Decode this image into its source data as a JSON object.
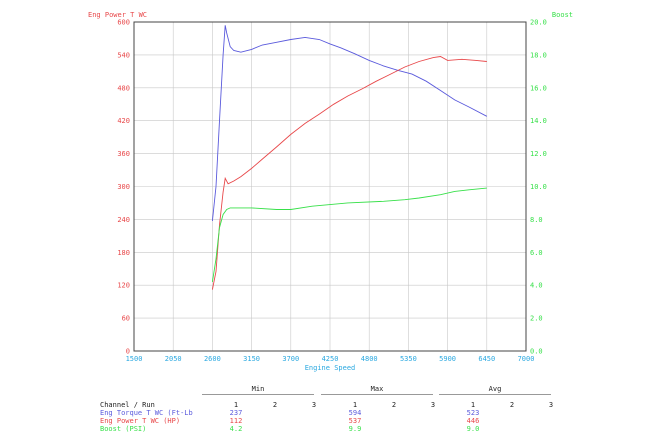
{
  "colors": {
    "torque": "#5a5adc",
    "power": "#e8484a",
    "boost": "#38e04a",
    "speed_axis": "#2aa8e0",
    "grid": "#c8c8c8",
    "table_text": "#222222"
  },
  "chart_data": {
    "type": "line",
    "title": "",
    "xlabel": "Engine Speed",
    "ylabel_left": "Eng Power T WC",
    "ylabel_right": "Boost",
    "xlim": [
      1500,
      7000
    ],
    "x_ticks": [
      1500,
      2050,
      2600,
      3150,
      3700,
      4250,
      4800,
      5350,
      5900,
      6450,
      7000
    ],
    "ylim_left": [
      0,
      600
    ],
    "y_ticks_left": [
      0,
      60,
      120,
      180,
      240,
      300,
      360,
      420,
      480,
      540,
      600
    ],
    "ylim_right": [
      0,
      20
    ],
    "y_ticks_right": [
      "0.0",
      "2.0",
      "4.0",
      "6.0",
      "8.0",
      "10.0",
      "12.0",
      "14.0",
      "16.0",
      "18.0",
      "20.0"
    ],
    "grid": true,
    "series": [
      {
        "name": "Eng Torque T WC (Ft-Lb)",
        "axis": "left",
        "x": [
          2600,
          2650,
          2700,
          2750,
          2780,
          2800,
          2850,
          2900,
          3000,
          3150,
          3300,
          3500,
          3700,
          3900,
          4100,
          4250,
          4400,
          4600,
          4800,
          5000,
          5200,
          5400,
          5600,
          5800,
          6000,
          6200,
          6450
        ],
        "y": [
          237,
          300,
          420,
          540,
          594,
          580,
          555,
          548,
          545,
          550,
          558,
          563,
          568,
          572,
          568,
          560,
          553,
          542,
          530,
          520,
          512,
          505,
          492,
          475,
          458,
          445,
          428
        ]
      },
      {
        "name": "Eng Power T WC (HP)",
        "axis": "left",
        "x": [
          2600,
          2650,
          2700,
          2750,
          2780,
          2820,
          2900,
          3000,
          3150,
          3300,
          3500,
          3700,
          3900,
          4100,
          4300,
          4500,
          4700,
          4900,
          5100,
          5300,
          5500,
          5700,
          5800,
          5900,
          6100,
          6300,
          6450
        ],
        "y": [
          112,
          145,
          230,
          290,
          315,
          305,
          310,
          318,
          333,
          350,
          372,
          395,
          415,
          432,
          450,
          465,
          478,
          492,
          505,
          518,
          528,
          535,
          537,
          530,
          532,
          530,
          528
        ]
      },
      {
        "name": "Boost (PSI)",
        "axis": "right",
        "x": [
          2600,
          2650,
          2700,
          2750,
          2800,
          2850,
          2950,
          3150,
          3500,
          3700,
          4000,
          4500,
          5000,
          5300,
          5500,
          5800,
          6000,
          6200,
          6450
        ],
        "y": [
          4.2,
          5.6,
          7.5,
          8.3,
          8.6,
          8.7,
          8.7,
          8.7,
          8.6,
          8.6,
          8.8,
          9.0,
          9.1,
          9.2,
          9.3,
          9.5,
          9.7,
          9.8,
          9.9
        ]
      }
    ]
  },
  "stats_table": {
    "header_label": "Channel / Run",
    "groups": [
      {
        "title": "Min",
        "runs": [
          "1",
          "2",
          "3"
        ]
      },
      {
        "title": "Max",
        "runs": [
          "1",
          "2",
          "3"
        ]
      },
      {
        "title": "Avg",
        "runs": [
          "1",
          "2",
          "3"
        ]
      }
    ],
    "rows": [
      {
        "label": "Eng Torque T WC (Ft-Lb",
        "min": "237",
        "max": "594",
        "avg": "523"
      },
      {
        "label": "Eng Power T WC (HP)",
        "min": "112",
        "max": "537",
        "avg": "446"
      },
      {
        "label": "Boost (PSI)",
        "min": "4.2",
        "max": "9.9",
        "avg": "9.0"
      }
    ]
  }
}
